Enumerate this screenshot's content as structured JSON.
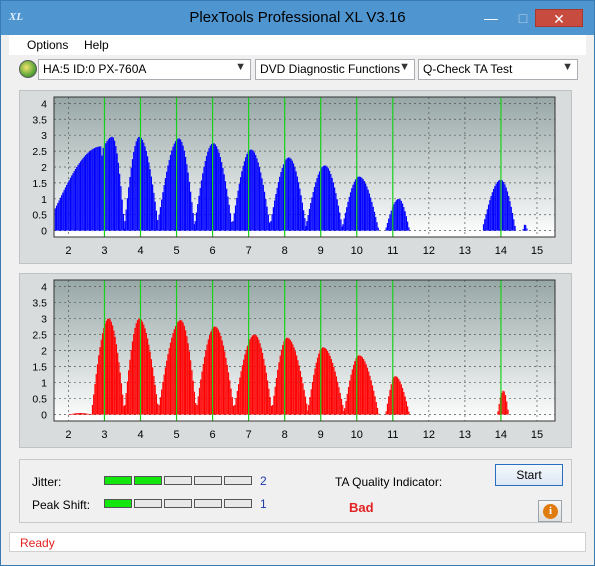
{
  "window": {
    "title": "PlexTools Professional XL V3.16",
    "app_icon_text": "XL"
  },
  "menu": {
    "items": [
      {
        "label": "Options"
      },
      {
        "label": "Help"
      }
    ]
  },
  "toolbar": {
    "drive": "HA:5 ID:0  PX-760A",
    "function": "DVD Diagnostic Functions",
    "test": "Q-Check TA Test"
  },
  "chart_data": [
    {
      "type": "bar",
      "name": "top",
      "color": "#0000ff",
      "x_ticks": [
        2,
        3,
        4,
        5,
        6,
        7,
        8,
        9,
        10,
        11,
        12,
        13,
        14,
        15
      ],
      "y_ticks": [
        0,
        0.5,
        1,
        1.5,
        2,
        2.5,
        3,
        3.5,
        4
      ],
      "xlim": [
        1.6,
        15.5
      ],
      "ylim": [
        -0.2,
        4.2
      ],
      "peak_markers": [
        3,
        4,
        5,
        6,
        7,
        8,
        9,
        10,
        11,
        14
      ],
      "bands": [
        {
          "start": 1.62,
          "end": 2.95,
          "start_level": 0.7,
          "peak_level": 2.65,
          "peak_at": 2.9
        },
        {
          "start": 2.95,
          "end": 3.55,
          "start_level": 2.6,
          "peak_level": 2.95,
          "peak_at": 3.2
        },
        {
          "start": 3.55,
          "end": 4.5,
          "start_level": 0.3,
          "peak_level": 2.95,
          "peak_at": 3.95
        },
        {
          "start": 4.5,
          "end": 5.5,
          "start_level": 0.5,
          "peak_level": 2.9,
          "peak_at": 5.05
        },
        {
          "start": 5.5,
          "end": 6.55,
          "start_level": 0.3,
          "peak_level": 2.75,
          "peak_at": 6.0
        },
        {
          "start": 6.55,
          "end": 7.6,
          "start_level": 0.3,
          "peak_level": 2.55,
          "peak_at": 7.05
        },
        {
          "start": 7.6,
          "end": 8.6,
          "start_level": 0.3,
          "peak_level": 2.3,
          "peak_at": 8.1
        },
        {
          "start": 8.6,
          "end": 9.6,
          "start_level": 0.3,
          "peak_level": 2.05,
          "peak_at": 9.1
        },
        {
          "start": 9.6,
          "end": 10.6,
          "start_level": 0.2,
          "peak_level": 1.7,
          "peak_at": 10.05
        },
        {
          "start": 10.8,
          "end": 11.45,
          "start_level": 0.1,
          "peak_level": 1.0,
          "peak_at": 11.15
        },
        {
          "start": 13.5,
          "end": 14.4,
          "start_level": 0.2,
          "peak_level": 1.6,
          "peak_at": 13.98
        },
        {
          "start": 14.6,
          "end": 14.72,
          "start_level": 0.05,
          "peak_level": 0.2,
          "peak_at": 14.65
        }
      ]
    },
    {
      "type": "bar",
      "name": "bottom",
      "color": "#ff0000",
      "x_ticks": [
        2,
        3,
        4,
        5,
        6,
        7,
        8,
        9,
        10,
        11,
        12,
        13,
        14,
        15
      ],
      "y_ticks": [
        0,
        0.5,
        1,
        1.5,
        2,
        2.5,
        3,
        3.5,
        4
      ],
      "xlim": [
        1.6,
        15.5
      ],
      "ylim": [
        -0.2,
        4.2
      ],
      "peak_markers": [
        3,
        4,
        5,
        6,
        7,
        8,
        9,
        10,
        11,
        14
      ],
      "bands": [
        {
          "start": 2.0,
          "end": 2.65,
          "start_level": 0.0,
          "peak_level": 0.05,
          "peak_at": 2.3
        },
        {
          "start": 2.65,
          "end": 3.55,
          "start_level": 0.3,
          "peak_level": 3.0,
          "peak_at": 3.1
        },
        {
          "start": 3.55,
          "end": 4.5,
          "start_level": 0.3,
          "peak_level": 3.0,
          "peak_at": 3.95
        },
        {
          "start": 4.5,
          "end": 5.55,
          "start_level": 0.3,
          "peak_level": 2.95,
          "peak_at": 5.1
        },
        {
          "start": 5.55,
          "end": 6.6,
          "start_level": 0.3,
          "peak_level": 2.75,
          "peak_at": 6.05
        },
        {
          "start": 6.6,
          "end": 7.65,
          "start_level": 0.3,
          "peak_level": 2.5,
          "peak_at": 7.15
        },
        {
          "start": 7.65,
          "end": 8.65,
          "start_level": 0.3,
          "peak_level": 2.4,
          "peak_at": 8.05
        },
        {
          "start": 8.65,
          "end": 9.65,
          "start_level": 0.3,
          "peak_level": 2.1,
          "peak_at": 9.05
        },
        {
          "start": 9.65,
          "end": 10.6,
          "start_level": 0.2,
          "peak_level": 1.85,
          "peak_at": 10.05
        },
        {
          "start": 10.8,
          "end": 11.45,
          "start_level": 0.1,
          "peak_level": 1.2,
          "peak_at": 11.05
        },
        {
          "start": 13.9,
          "end": 14.2,
          "start_level": 0.1,
          "peak_level": 0.75,
          "peak_at": 14.05
        }
      ]
    }
  ],
  "status": {
    "jitter_label": "Jitter:",
    "jitter_value": "2",
    "jitter_level": 2,
    "peak_shift_label": "Peak Shift:",
    "peak_shift_value": "1",
    "peak_shift_level": 1,
    "bar_segments": 5,
    "ta_label": "TA Quality Indicator:",
    "ta_value": "Bad",
    "start_label": "Start",
    "info_glyph": "i"
  },
  "statusbar": {
    "text": "Ready"
  },
  "colors": {
    "title_bg": "#4f95d0",
    "status_red": "#e32222",
    "level_green": "#13e70e"
  }
}
